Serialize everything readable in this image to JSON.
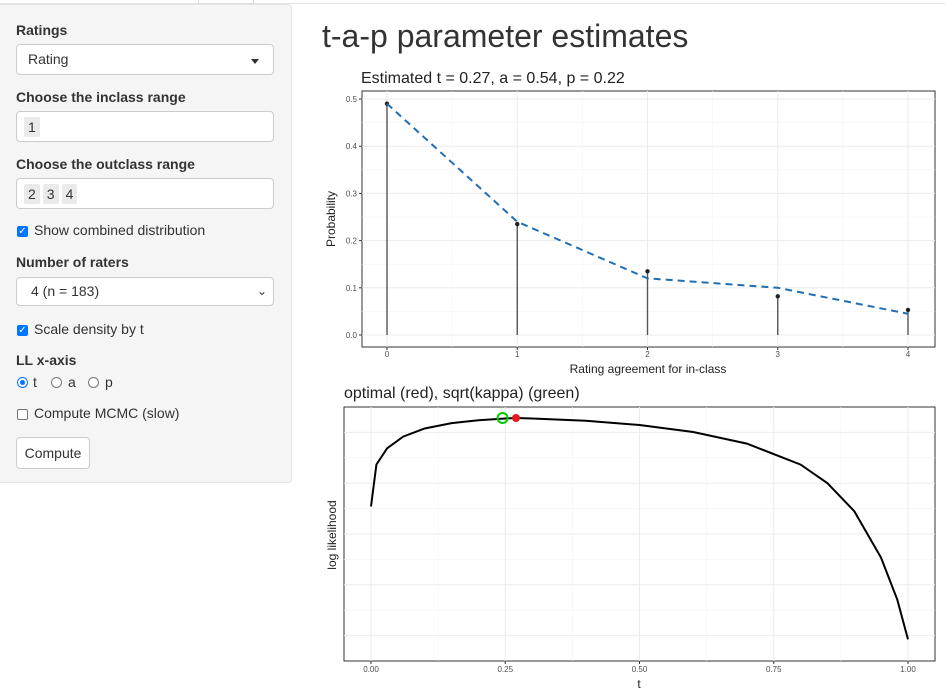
{
  "sidebar": {
    "ratings_label": "Ratings",
    "ratings_value": "Rating",
    "inclass_label": "Choose the inclass range",
    "inclass_chips": [
      "1"
    ],
    "outclass_label": "Choose the outclass range",
    "outclass_chips": [
      "2",
      "3",
      "4"
    ],
    "show_combined_label": "Show combined distribution",
    "show_combined_checked": true,
    "raters_label": "Number of raters",
    "raters_value": "4 (n = 183)",
    "scale_density_label": "Scale density by t",
    "scale_density_checked": true,
    "ll_axis_label": "LL x-axis",
    "ll_axis_options": [
      "t",
      "a",
      "p"
    ],
    "ll_axis_selected": "t",
    "mcmc_label": "Compute MCMC (slow)",
    "mcmc_checked": false,
    "compute_label": "Compute"
  },
  "main": {
    "page_title": "t-a-p parameter estimates"
  },
  "chart_data": [
    {
      "type": "line",
      "title": "Estimated t = 0.27, a = 0.54, p = 0.22",
      "xlabel": "Rating agreement for in-class",
      "ylabel": "Probability",
      "x": [
        0,
        1,
        2,
        3,
        4
      ],
      "xticks": [
        "0",
        "1",
        "2",
        "3",
        "4"
      ],
      "yticks": [
        "0.0",
        "0.1",
        "0.2",
        "0.3",
        "0.4",
        "0.5"
      ],
      "ylim": [
        0,
        0.5
      ],
      "grid": true,
      "series": [
        {
          "kind": "stem-points",
          "values": [
            0.49,
            0.235,
            0.135,
            0.082,
            0.053
          ],
          "color": "#222222"
        },
        {
          "kind": "dashed-line",
          "values": [
            0.49,
            0.24,
            0.12,
            0.1,
            0.045
          ],
          "color": "#1f6fb5"
        }
      ]
    },
    {
      "type": "line",
      "title": "optimal (red), sqrt(kappa) (green)",
      "xlabel": "t",
      "ylabel": "log likelihood",
      "xticks": [
        "0.00",
        "0.25",
        "0.50",
        "0.75",
        "1.00"
      ],
      "xlim": [
        0,
        1
      ],
      "grid": true,
      "series": [
        {
          "kind": "line",
          "x": [
            0,
            0.01,
            0.03,
            0.06,
            0.1,
            0.15,
            0.2,
            0.25,
            0.27,
            0.3,
            0.4,
            0.5,
            0.6,
            0.7,
            0.8,
            0.85,
            0.9,
            0.95,
            0.98,
            1.0
          ],
          "values": [
            0.62,
            0.8,
            0.87,
            0.92,
            0.955,
            0.978,
            0.99,
            0.998,
            1.0,
            0.998,
            0.988,
            0.97,
            0.94,
            0.89,
            0.8,
            0.72,
            0.6,
            0.4,
            0.22,
            0.05
          ],
          "color": "#000000"
        }
      ],
      "markers": [
        {
          "name": "optimal",
          "t": 0.27,
          "color": "#e31a1c",
          "filled": true
        },
        {
          "name": "sqrt(kappa)",
          "t": 0.245,
          "color": "#00cc00",
          "filled": false
        }
      ]
    }
  ]
}
